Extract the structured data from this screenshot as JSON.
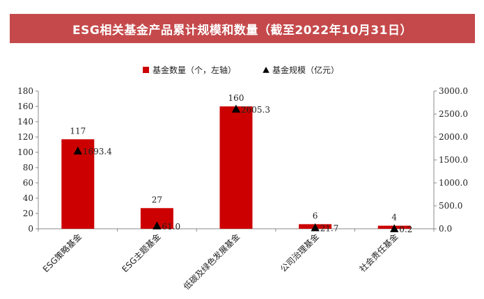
{
  "chart_data": {
    "type": "bar",
    "title": "ESG相关基金产品累计规模和数量（截至2022年10月31日）",
    "categories": [
      "ESG策略基金",
      "ESG主题基金",
      "低碳及绿色发展基金",
      "公司治理基金",
      "社会责任基金"
    ],
    "series": [
      {
        "name": "基金数量（个，左轴）",
        "type": "bar",
        "axis": "left",
        "color": "#cc0000",
        "values": [
          117,
          27,
          160,
          6,
          4
        ],
        "labels": [
          "117",
          "27",
          "160",
          "6",
          "4"
        ]
      },
      {
        "name": "基金规模（亿元）",
        "type": "marker",
        "marker": "triangle",
        "axis": "right",
        "color": "#000000",
        "values": [
          1693.4,
          61.0,
          2605.3,
          21.7,
          0.2
        ],
        "labels": [
          "1693.4",
          "61.0",
          "2605.3",
          "21.7",
          "0.2"
        ]
      }
    ],
    "ylim_left": [
      0,
      180
    ],
    "yticks_left": [
      "0",
      "20",
      "40",
      "60",
      "80",
      "100",
      "120",
      "140",
      "160",
      "180"
    ],
    "ylim_right": [
      0,
      3000
    ],
    "yticks_right": [
      "0.0",
      "500.0",
      "1000.0",
      "1500.0",
      "2000.0",
      "2500.0",
      "3000.0"
    ],
    "legend_position": "top-center",
    "grid": false
  }
}
